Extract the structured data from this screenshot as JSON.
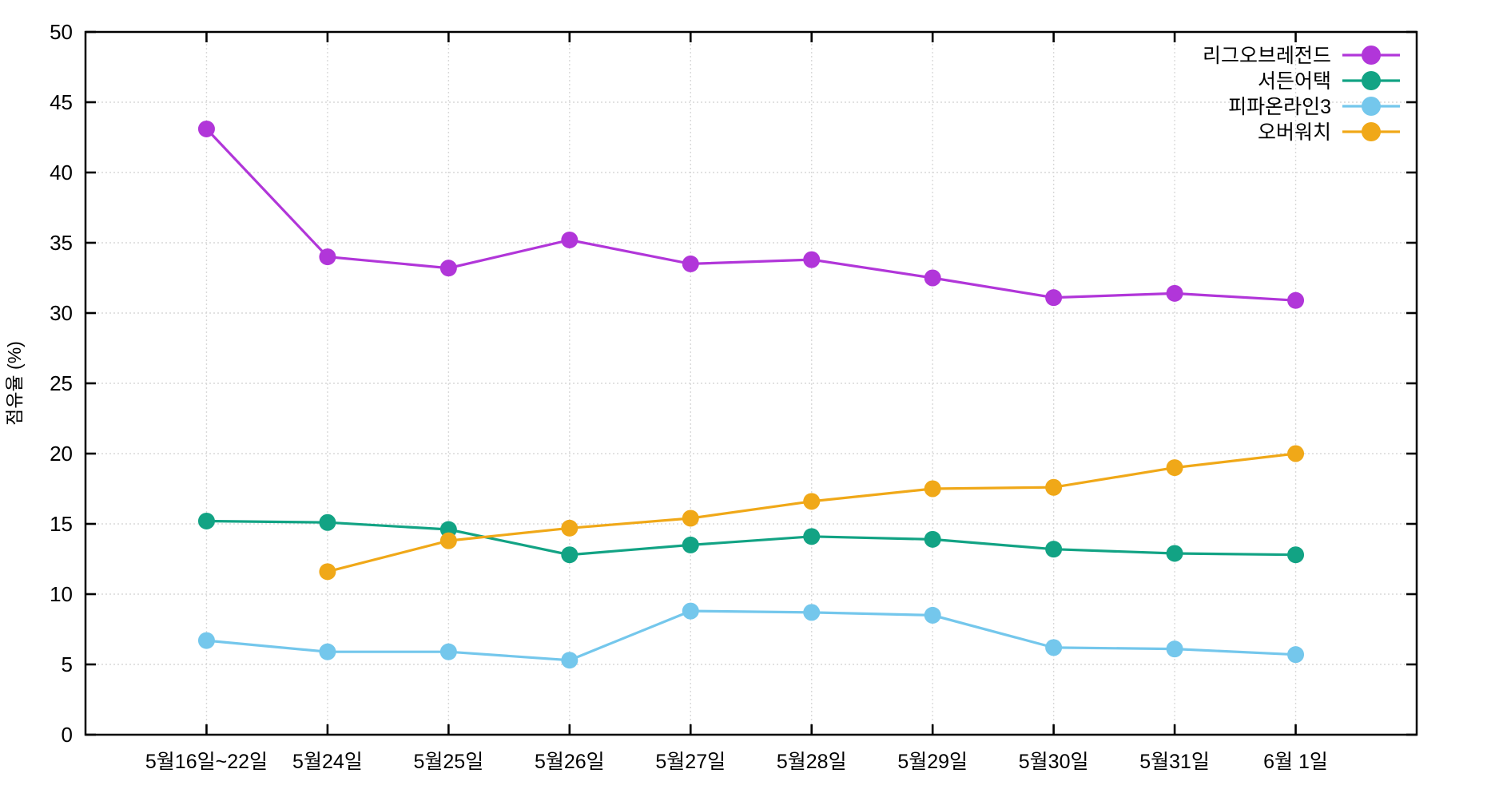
{
  "chart_data": {
    "type": "line",
    "title": "",
    "xlabel": "",
    "ylabel": "점유율 (%)",
    "ylim": [
      0,
      50
    ],
    "ytick_step": 5,
    "grid": "dashed-both-axes",
    "legend_position": "top-right-inside",
    "categories": [
      "5월16일~22일",
      "5월24일",
      "5월25일",
      "5월26일",
      "5월27일",
      "5월28일",
      "5월29일",
      "5월30일",
      "5월31일",
      "6월 1일"
    ],
    "series": [
      {
        "name": "리그오브레전드",
        "color": "#b136d9",
        "values": [
          43.1,
          34.0,
          33.2,
          35.2,
          33.5,
          33.8,
          32.5,
          31.1,
          31.4,
          30.9
        ]
      },
      {
        "name": "서든어택",
        "color": "#12a384",
        "values": [
          15.2,
          15.1,
          14.6,
          12.8,
          13.5,
          14.1,
          13.9,
          13.2,
          12.9,
          12.8
        ]
      },
      {
        "name": "피파온라인3",
        "color": "#74c7ec",
        "values": [
          6.7,
          5.9,
          5.9,
          5.3,
          8.8,
          8.7,
          8.5,
          6.2,
          6.1,
          5.7
        ]
      },
      {
        "name": "오버워치",
        "color": "#f0a818",
        "values": [
          null,
          11.6,
          13.8,
          14.7,
          15.4,
          16.6,
          17.5,
          17.6,
          19.0,
          20.0
        ]
      }
    ],
    "style": {
      "background": "#ffffff",
      "border_color": "#000000",
      "grid_color": "#d9d9d9",
      "tick_color": "#000000"
    }
  }
}
